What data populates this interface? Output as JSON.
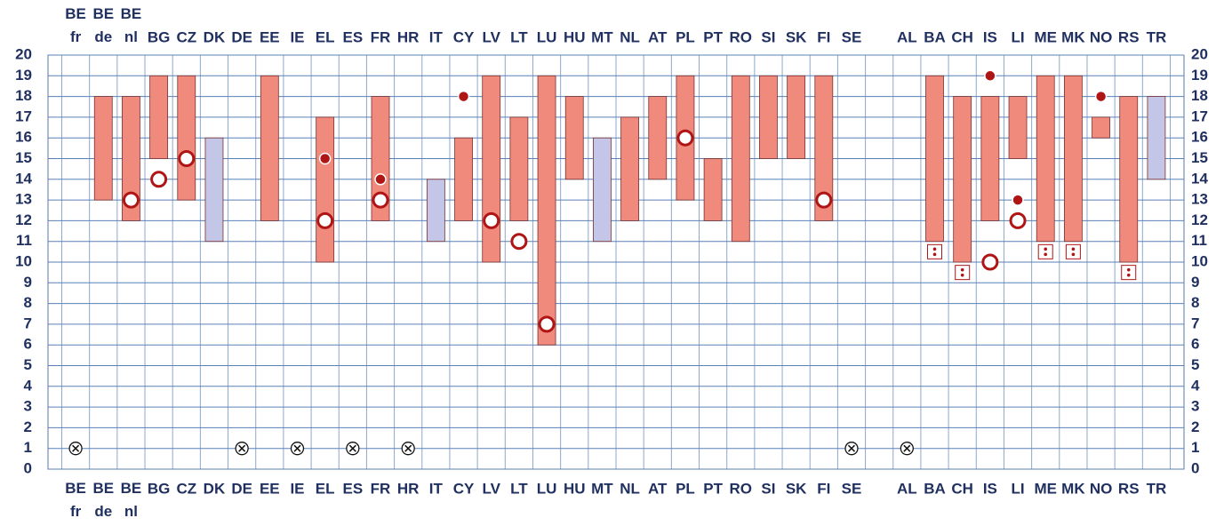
{
  "chart_data": {
    "type": "range_bar",
    "categories": [
      "BE fr",
      "BE de",
      "BE nl",
      "BG",
      "CZ",
      "DK",
      "DE",
      "EE",
      "IE",
      "EL",
      "ES",
      "FR",
      "HR",
      "IT",
      "CY",
      "LV",
      "LT",
      "LU",
      "HU",
      "MT",
      "NL",
      "AT",
      "PL",
      "PT",
      "RO",
      "SI",
      "SK",
      "FI",
      "SE",
      null,
      "AL",
      "BA",
      "CH",
      "IS",
      "LI",
      "ME",
      "MK",
      "NO",
      "RS",
      "TR"
    ],
    "low": [
      null,
      13,
      12,
      15,
      13,
      11,
      null,
      12,
      null,
      10,
      null,
      12,
      null,
      11,
      12,
      10,
      12,
      6,
      14,
      11,
      12,
      14,
      13,
      12,
      11,
      15,
      15,
      12,
      null,
      null,
      null,
      11,
      10,
      12,
      15,
      11,
      11,
      16,
      10,
      14
    ],
    "high": [
      null,
      18,
      18,
      19,
      19,
      16,
      null,
      19,
      null,
      17,
      null,
      18,
      null,
      14,
      16,
      19,
      17,
      19,
      18,
      16,
      17,
      18,
      19,
      15,
      19,
      19,
      19,
      19,
      null,
      null,
      null,
      19,
      18,
      18,
      18,
      19,
      19,
      17,
      18,
      18
    ],
    "bar_colors": [
      null,
      "#f08a7c",
      "#f08a7c",
      "#f08a7c",
      "#f08a7c",
      "#c3c6e6",
      null,
      "#f08a7c",
      null,
      "#f08a7c",
      null,
      "#f08a7c",
      null,
      "#c3c6e6",
      "#f08a7c",
      "#f08a7c",
      "#f08a7c",
      "#f08a7c",
      "#f08a7c",
      "#c3c6e6",
      "#f08a7c",
      "#f08a7c",
      "#f08a7c",
      "#f08a7c",
      "#f08a7c",
      "#f08a7c",
      "#f08a7c",
      "#f08a7c",
      null,
      null,
      null,
      "#f08a7c",
      "#f08a7c",
      "#f08a7c",
      "#f08a7c",
      "#f08a7c",
      "#f08a7c",
      "#f08a7c",
      "#f08a7c",
      "#c3c6e6"
    ],
    "open_marker": [
      null,
      null,
      13,
      14,
      15,
      null,
      null,
      null,
      null,
      12,
      null,
      13,
      null,
      null,
      null,
      12,
      11,
      7,
      null,
      null,
      null,
      null,
      16,
      null,
      null,
      null,
      null,
      13,
      null,
      null,
      null,
      null,
      null,
      10,
      12,
      null,
      null,
      null,
      null,
      null
    ],
    "dot_marker": [
      null,
      null,
      null,
      null,
      null,
      null,
      null,
      null,
      null,
      15,
      null,
      14,
      null,
      null,
      18,
      null,
      null,
      null,
      null,
      null,
      null,
      null,
      null,
      null,
      null,
      null,
      null,
      null,
      null,
      null,
      null,
      null,
      null,
      19,
      13,
      null,
      null,
      18,
      null,
      null
    ],
    "box_marker": [
      null,
      null,
      null,
      null,
      null,
      null,
      null,
      null,
      null,
      null,
      null,
      null,
      null,
      null,
      null,
      null,
      null,
      null,
      null,
      null,
      null,
      null,
      null,
      null,
      null,
      null,
      null,
      null,
      null,
      null,
      null,
      10.5,
      9.5,
      null,
      null,
      10.5,
      10.5,
      null,
      9.5,
      null
    ],
    "cross_marker": [
      1,
      null,
      null,
      null,
      null,
      null,
      1,
      null,
      1,
      null,
      1,
      null,
      1,
      null,
      null,
      null,
      null,
      null,
      null,
      null,
      null,
      null,
      null,
      null,
      null,
      null,
      null,
      null,
      1,
      null,
      1,
      null,
      null,
      null,
      null,
      null,
      null,
      null,
      null,
      null
    ],
    "marker_color": "#b01515",
    "ylim": [
      0,
      20
    ],
    "yticks": [
      0,
      1,
      2,
      3,
      4,
      5,
      6,
      7,
      8,
      9,
      10,
      11,
      12,
      13,
      14,
      15,
      16,
      17,
      18,
      19,
      20
    ],
    "grid": true
  }
}
